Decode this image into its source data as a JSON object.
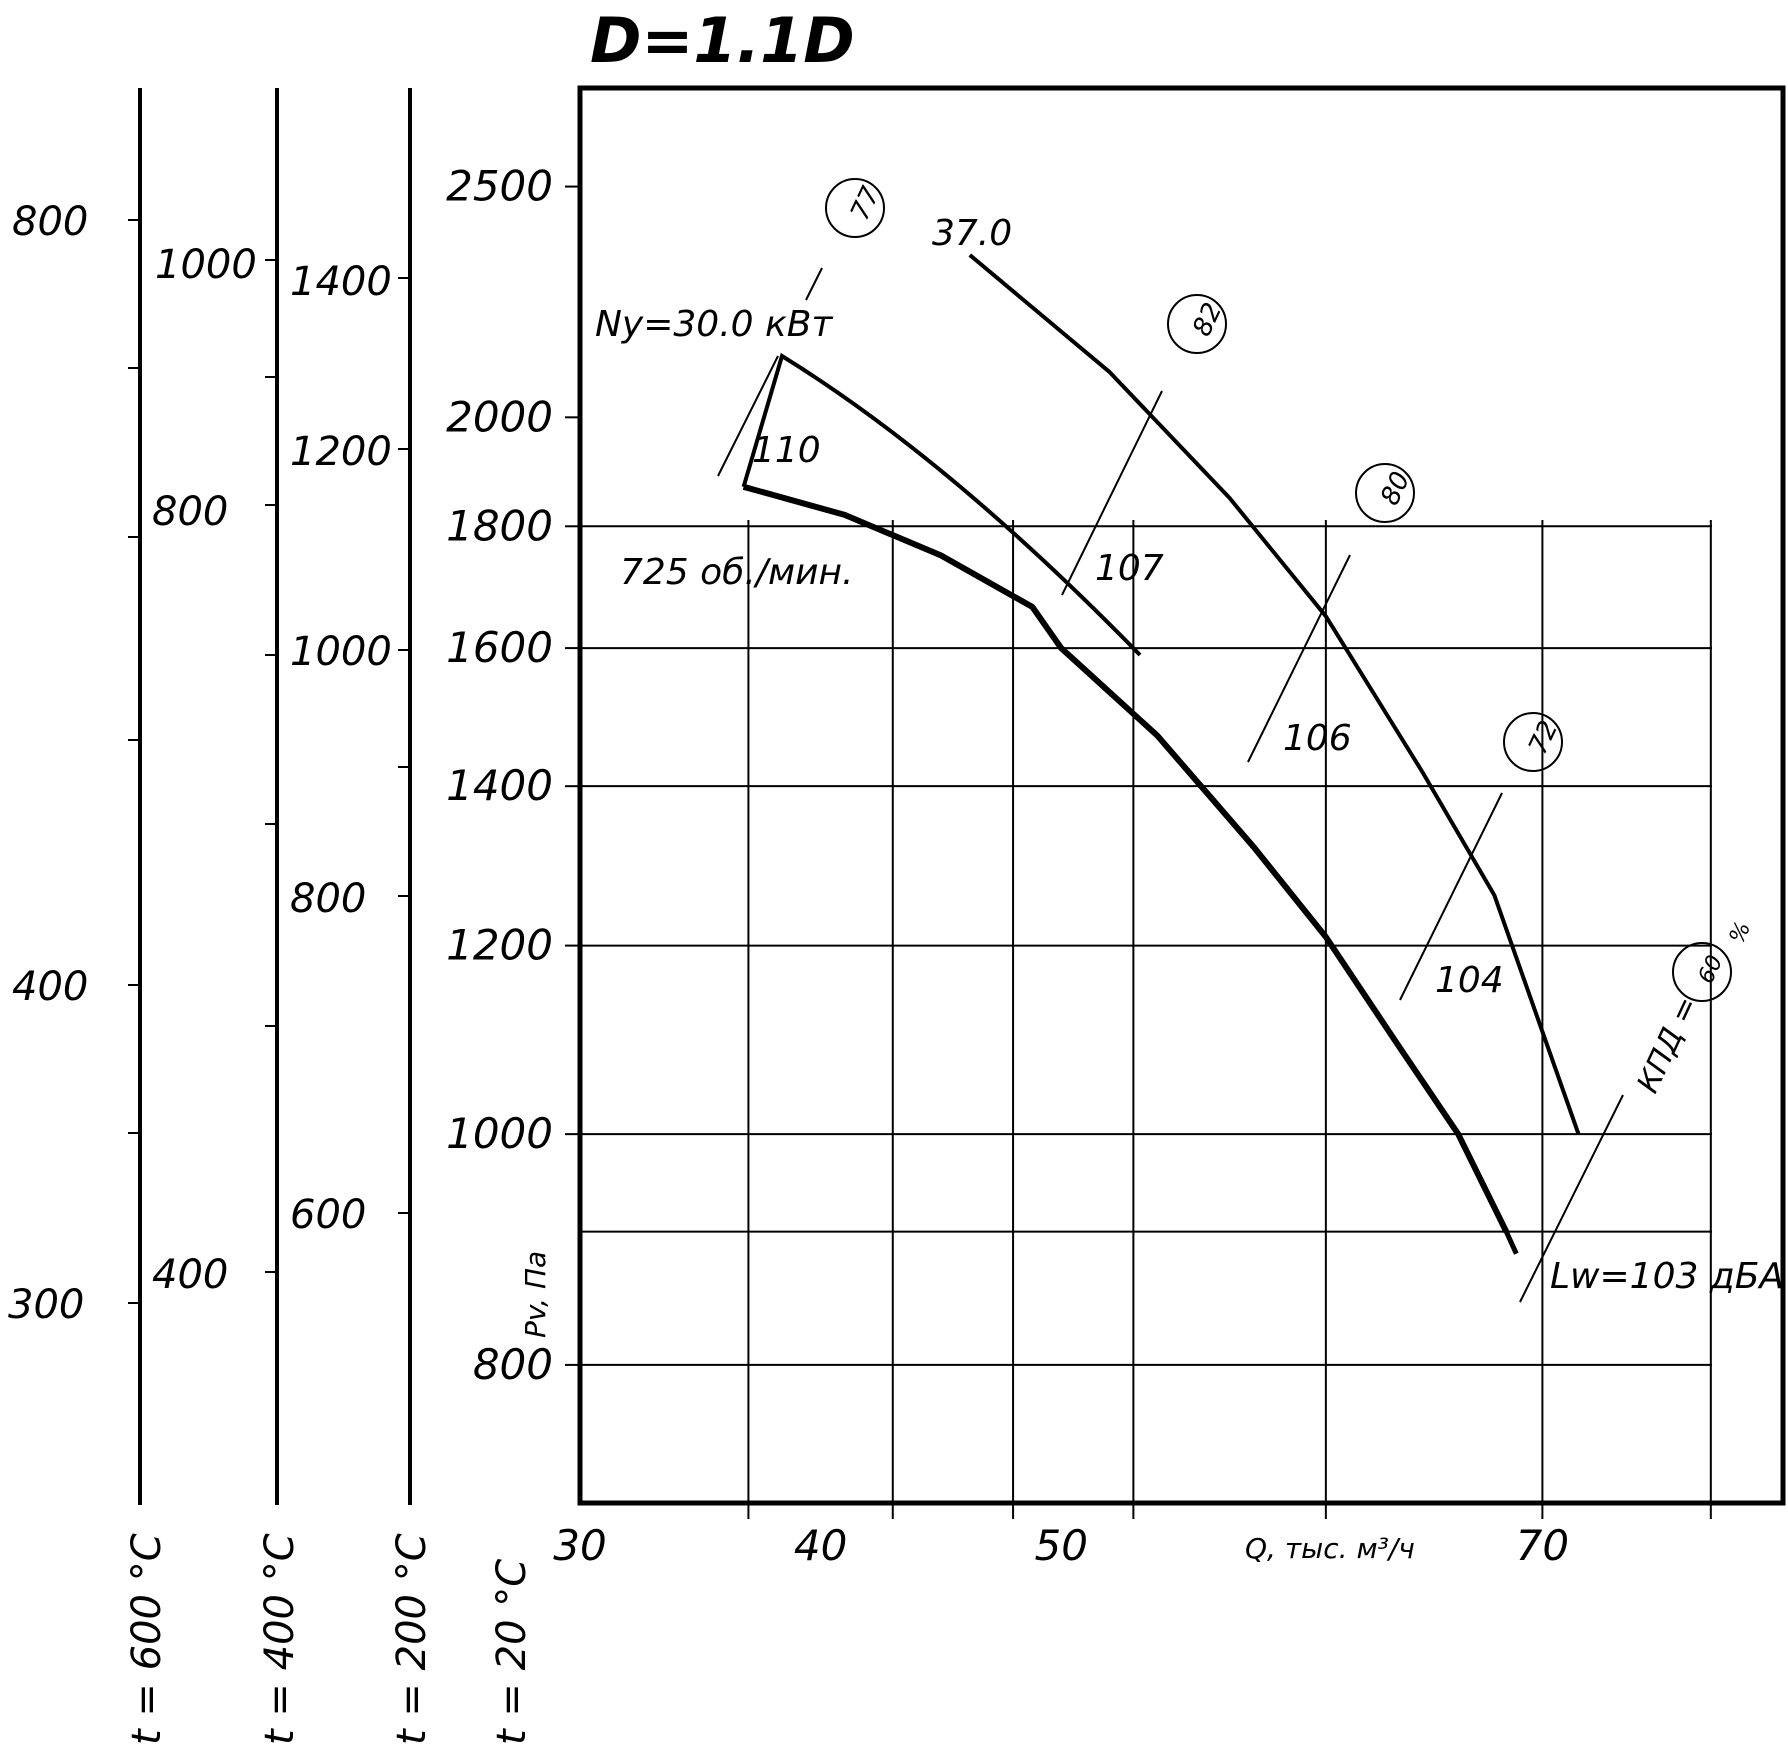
{
  "chart_data": {
    "type": "line",
    "title": "D=1.1D",
    "xlabel": "Q, тыс. м³/ч",
    "ylabel": "Pv, Па",
    "y_scale": "log",
    "xlim": [
      30,
      80
    ],
    "ylim": [
      700,
      2750
    ],
    "x_ticks": [
      "30",
      "40",
      "50",
      "70"
    ],
    "y_ticks": [
      "2500",
      "2000",
      "1800",
      "1600",
      "1400",
      "1200",
      "1000",
      "800"
    ],
    "grid_x": [
      30,
      37,
      43,
      48,
      53,
      61,
      70,
      77,
      80
    ],
    "grid_y": [
      800,
      910,
      1000,
      1200,
      1400,
      1600,
      1800
    ],
    "annotations": {
      "power": "Ny=30.0 кВт",
      "speed": "725 об./мин.",
      "noise": "Lw=103 дБА",
      "efficiency": "КПД =",
      "efficiency_unit": "%",
      "top_curve_label": "37.0",
      "efficiency_values": [
        "77",
        "82",
        "80",
        "72",
        "60"
      ],
      "noise_values": [
        "110",
        "107",
        "106",
        "104"
      ]
    },
    "series": [
      {
        "values_note": "",
        "x": [
          36.8,
          41,
          45,
          48.8,
          50,
          54,
          58,
          61,
          64,
          66.5,
          68.5
        ],
        "y": [
          1870,
          1820,
          1750,
          1665,
          1600,
          1470,
          1320,
          1210,
          1090,
          1000,
          910
        ]
      }
    ],
    "upper_curve": {
      "x": [
        46.2,
        52,
        57,
        61,
        65,
        68,
        71.5
      ],
      "y": [
        2340,
        2090,
        1850,
        1650,
        1420,
        1260,
        1000
      ]
    },
    "side_scales": [
      {
        "label": "t = 600 °C",
        "ticks": [
          "800",
          "400",
          "300"
        ]
      },
      {
        "label": "t = 400 °C",
        "ticks": [
          "1000",
          "800",
          "400"
        ]
      },
      {
        "label": "t = 200 °C",
        "ticks": [
          "1400",
          "1200",
          "1000",
          "800",
          "600"
        ]
      },
      {
        "label": "t = 20 °C",
        "ticks": []
      }
    ]
  }
}
